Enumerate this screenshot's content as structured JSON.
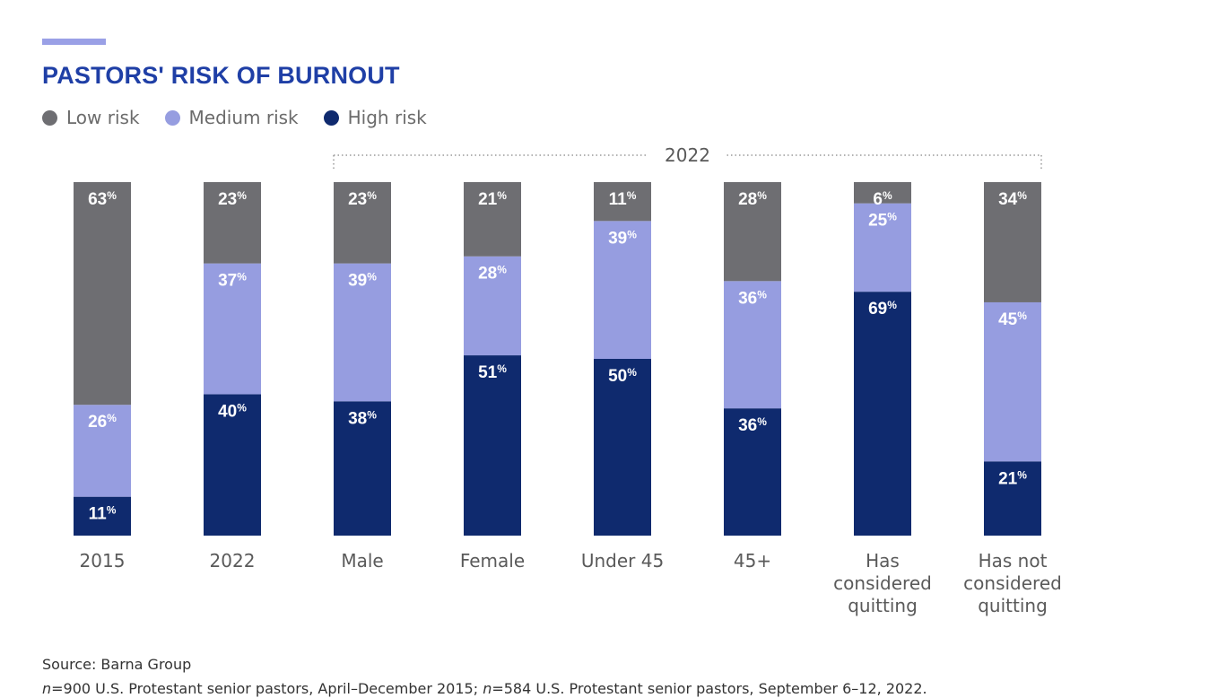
{
  "header": {
    "title": "PASTORS' RISK OF BURNOUT"
  },
  "legend": {
    "items": [
      {
        "label": "Low risk",
        "color": "#6e6e72"
      },
      {
        "label": "Medium risk",
        "color": "#969de0"
      },
      {
        "label": "High risk",
        "color": "#0f2a6e"
      }
    ]
  },
  "chart_data": {
    "type": "bar",
    "stacked": true,
    "title": "PASTORS' RISK OF BURNOUT",
    "xlabel": "",
    "ylabel": "",
    "ylim": [
      0,
      100
    ],
    "grid": false,
    "legend_position": "top-left",
    "group_bracket": {
      "label": "2022",
      "from_category": 2,
      "to_category": 7
    },
    "categories": [
      "2015",
      "2022",
      "Male",
      "Female",
      "Under 45",
      "45+",
      "Has considered quitting",
      "Has not considered quitting"
    ],
    "series": [
      {
        "name": "High risk",
        "color": "#0f2a6e",
        "values": [
          11,
          40,
          38,
          51,
          50,
          36,
          69,
          21
        ]
      },
      {
        "name": "Medium risk",
        "color": "#969de0",
        "values": [
          26,
          37,
          39,
          28,
          39,
          36,
          25,
          45
        ]
      },
      {
        "name": "Low risk",
        "color": "#6e6e72",
        "values": [
          63,
          23,
          23,
          21,
          11,
          28,
          6,
          34
        ]
      }
    ],
    "value_suffix": "%"
  },
  "footer": {
    "source": "Source: Barna Group",
    "n1": "n",
    "text1": "=900 U.S. Protestant senior pastors, April–December 2015; ",
    "n2": "n",
    "text2": "=584 U.S. Protestant senior pastors, September 6–12, 2022."
  }
}
